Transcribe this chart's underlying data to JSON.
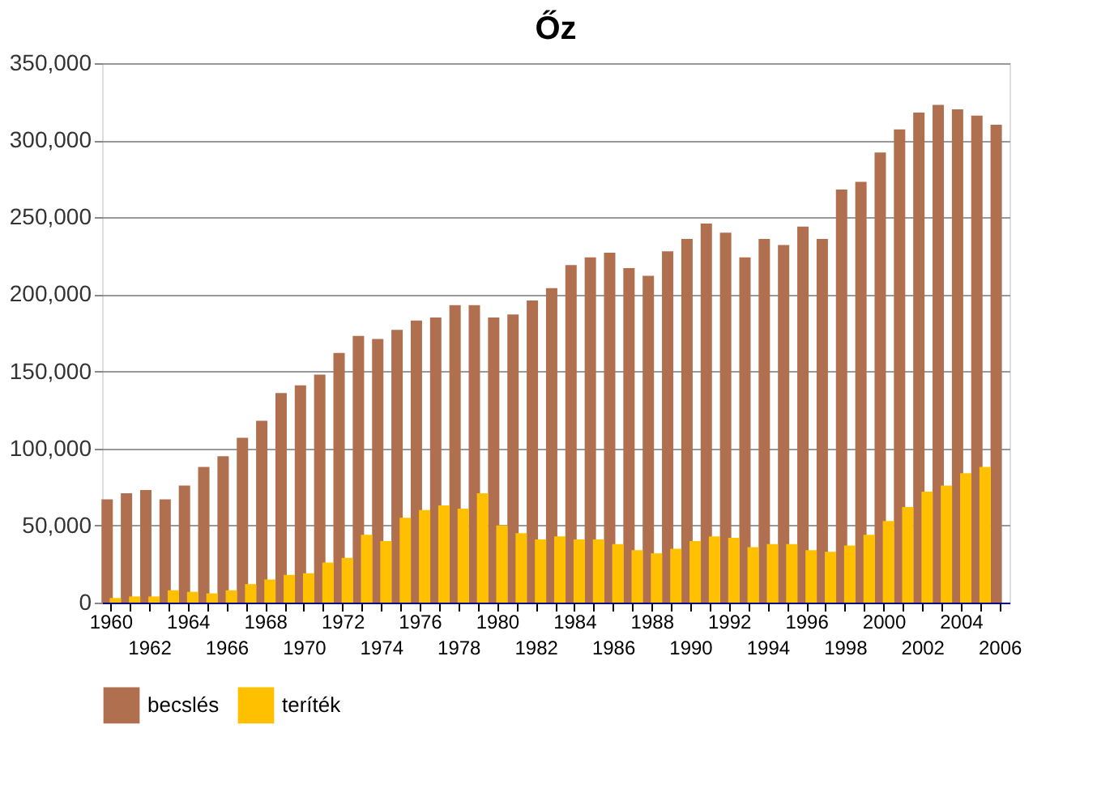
{
  "chart_data": {
    "type": "bar",
    "title": "Őz",
    "categories": [
      "1960",
      null,
      "1962",
      null,
      "1964",
      null,
      "1966",
      null,
      "1968",
      null,
      "1970",
      null,
      "1972",
      null,
      "1974",
      null,
      "1976",
      null,
      "1978",
      null,
      "1980",
      null,
      "1982",
      null,
      "1984",
      null,
      "1986",
      null,
      "1988",
      null,
      "1990",
      null,
      "1992",
      null,
      "1994",
      null,
      "1996",
      null,
      "1998",
      null,
      "2000",
      null,
      "2002",
      null,
      "2004",
      null,
      "2006"
    ],
    "series": [
      {
        "name": "becslés",
        "color": "#b07050",
        "values": [
          67000,
          71000,
          73000,
          67000,
          76000,
          88000,
          95000,
          107000,
          118000,
          136000,
          141000,
          148000,
          162000,
          173000,
          171000,
          177000,
          183000,
          185000,
          193000,
          193000,
          185000,
          187000,
          196000,
          204000,
          219000,
          224000,
          227000,
          217000,
          212000,
          228000,
          236000,
          246000,
          240000,
          224000,
          236000,
          232000,
          244000,
          236000,
          268000,
          273000,
          292000,
          307000,
          318000,
          323000,
          320000,
          316000,
          310000
        ]
      },
      {
        "name": "teríték",
        "color": "#ffc000",
        "values": [
          3000,
          4000,
          4000,
          8000,
          7000,
          6000,
          8000,
          12000,
          15000,
          18000,
          19000,
          26000,
          29000,
          44000,
          40000,
          55000,
          60000,
          63000,
          61000,
          71000,
          50000,
          45000,
          41000,
          43000,
          41000,
          41000,
          38000,
          34000,
          32000,
          35000,
          40000,
          43000,
          42000,
          36000,
          38000,
          38000,
          34000,
          33000,
          37000,
          44000,
          53000,
          62000,
          72000,
          76000,
          84000,
          88000,
          null
        ]
      }
    ],
    "ylim": [
      0,
      350000
    ],
    "yticks": [
      0,
      {
        "value": 50000,
        "label": "50,000"
      },
      {
        "value": 100000,
        "label": "100,000"
      },
      {
        "value": 150000,
        "label": "150,000"
      },
      {
        "value": 200000,
        "label": "200,000"
      },
      {
        "value": 250000,
        "label": "250,000"
      },
      {
        "value": 300000,
        "label": "300,000"
      },
      {
        "value": 350000,
        "label": "350,000"
      }
    ],
    "grid": "y",
    "legend": "bottom"
  }
}
